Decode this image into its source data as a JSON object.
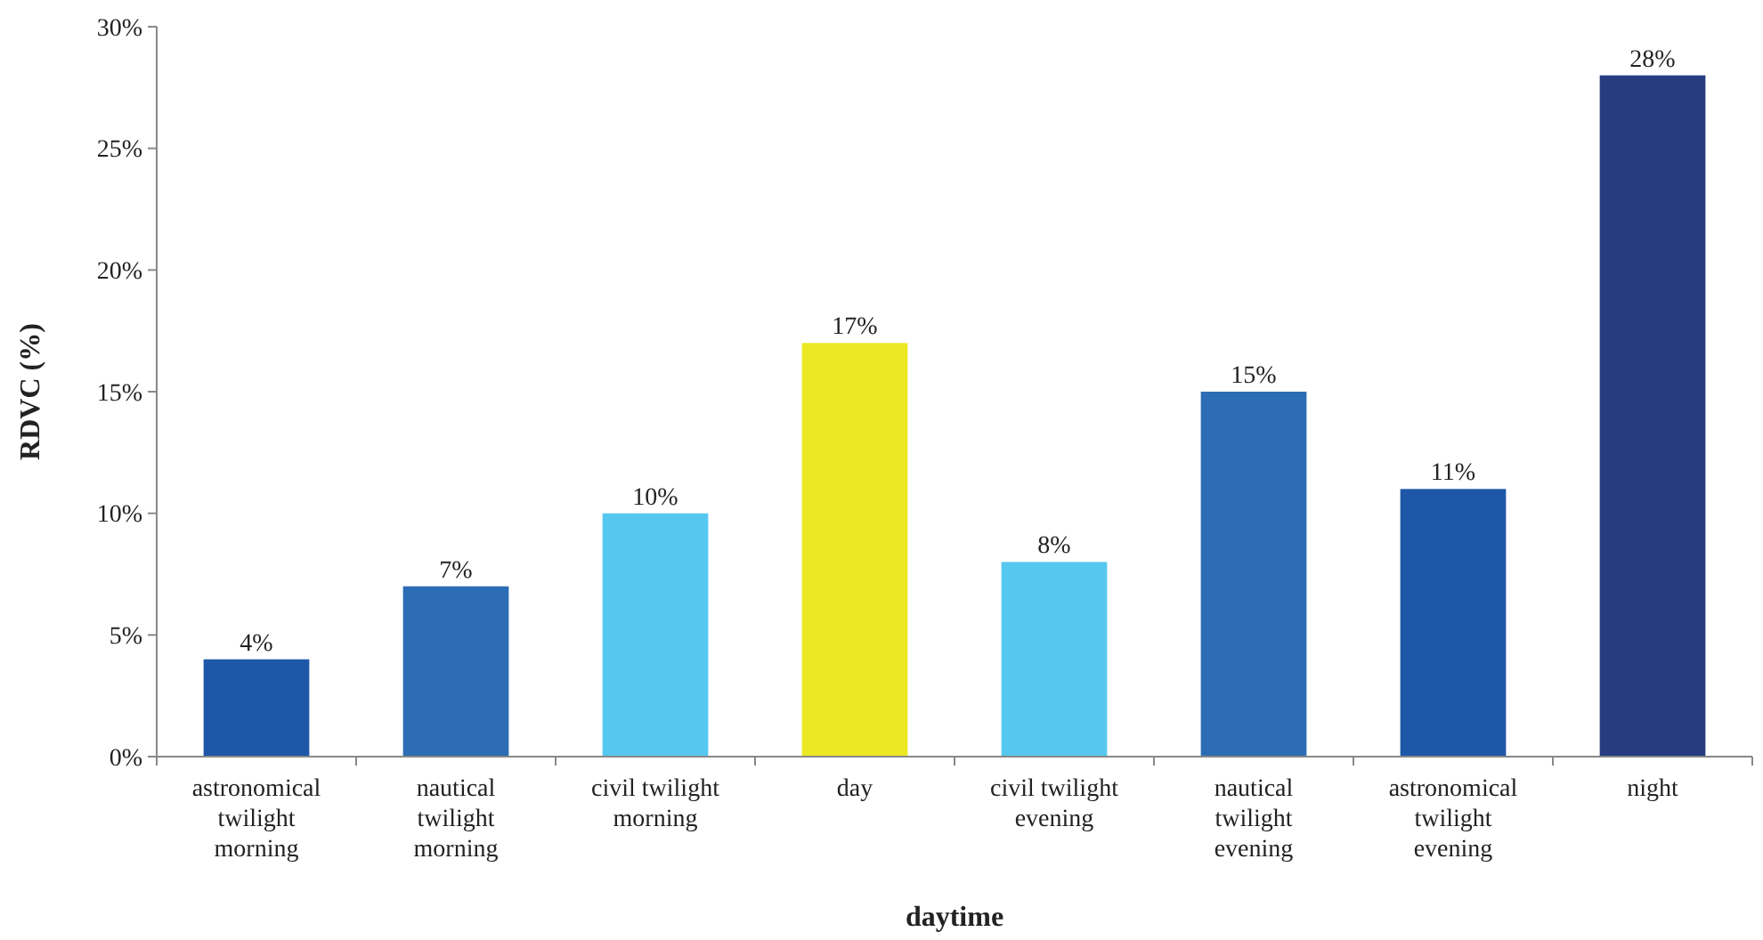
{
  "chart_data": {
    "type": "bar",
    "xlabel": "daytime",
    "ylabel": "RDVC (%)",
    "categories": [
      "astronomical twilight morning",
      "nautical twilight morning",
      "civil twilight morning",
      "day",
      "civil twilight evening",
      "nautical twilight evening",
      "astronomical twilight evening",
      "night"
    ],
    "values": [
      4,
      7,
      10,
      17,
      8,
      15,
      11,
      28
    ],
    "colors": [
      "#1f57a8",
      "#2c6db5",
      "#56c8f0",
      "#ece824",
      "#56c8f0",
      "#2c6db5",
      "#1f57a8",
      "#253c80"
    ],
    "value_labels": [
      "4%",
      "7%",
      "10%",
      "17%",
      "8%",
      "15%",
      "11%",
      "28%"
    ],
    "ylim": [
      0,
      30
    ],
    "yticks": [
      {
        "value": 0,
        "label": "0%"
      },
      {
        "value": 5,
        "label": "5%"
      },
      {
        "value": 10,
        "label": "10%"
      },
      {
        "value": 15,
        "label": "15%"
      },
      {
        "value": 20,
        "label": "20%"
      },
      {
        "value": 25,
        "label": "25%"
      },
      {
        "value": 30,
        "label": "30%"
      }
    ],
    "grid": false
  }
}
